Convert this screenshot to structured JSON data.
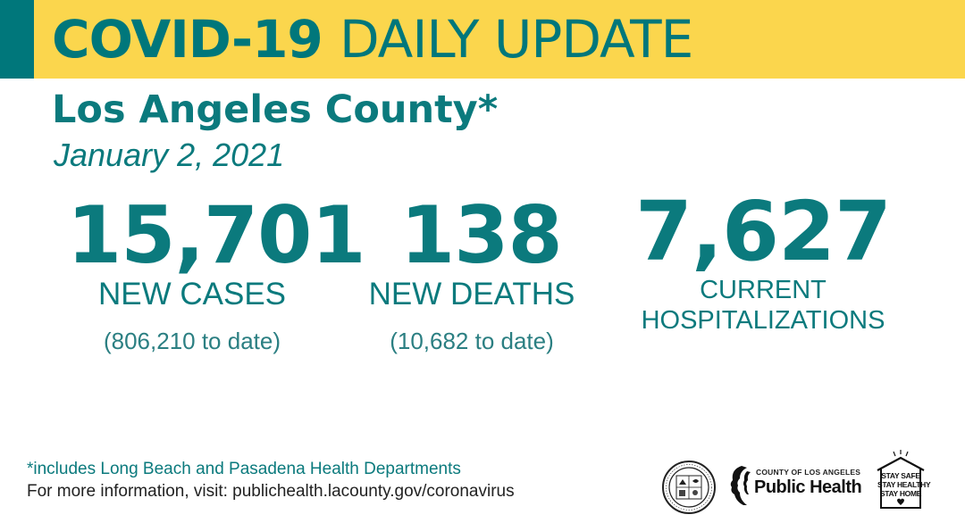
{
  "banner": {
    "title_bold": "COVID-19",
    "title_light": "DAILY UPDATE"
  },
  "header": {
    "county": "Los Angeles County*",
    "date": "January 2, 2021"
  },
  "stats": {
    "cases": {
      "value": "15,701",
      "label": "NEW CASES",
      "to_date": "(806,210 to date)"
    },
    "deaths": {
      "value": "138",
      "label": "NEW DEATHS",
      "to_date": "(10,682 to date)"
    },
    "hospitalizations": {
      "value": "7,627",
      "label_line1": "CURRENT",
      "label_line2": "HOSPITALIZATIONS"
    }
  },
  "footer": {
    "footnote": "*includes Long Beach and Pasadena Health Departments",
    "more_info": "For more information, visit: publichealth.lacounty.gov/coronavirus"
  },
  "logos": {
    "seal": "county-seal-icon",
    "public_health_small": "COUNTY OF LOS ANGELES",
    "public_health_big": "Public Health",
    "stay_line1": "STAY SAFE",
    "stay_line2": "STAY HEALTHY",
    "stay_line3": "STAY HOME"
  },
  "colors": {
    "banner": "#fbd64d",
    "accent": "#00777b",
    "text": "#0b7a7d"
  }
}
